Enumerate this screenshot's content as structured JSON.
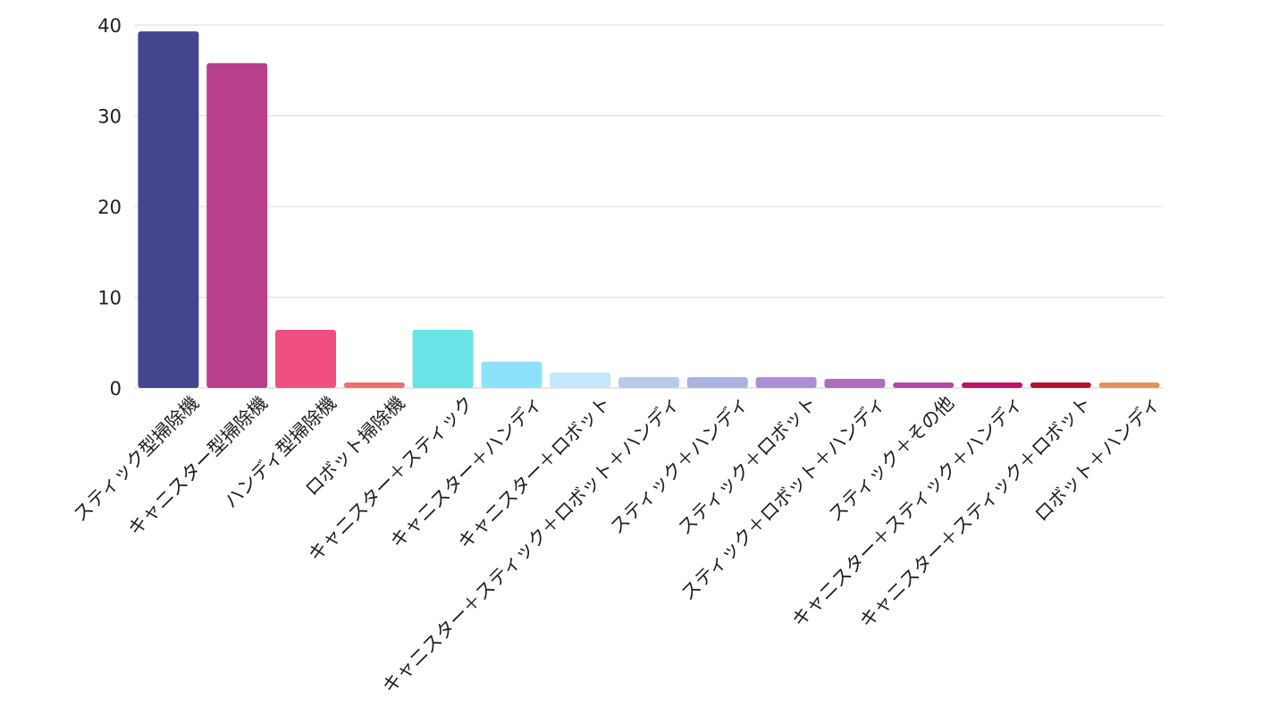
{
  "chart_data": {
    "type": "bar",
    "categories": [
      "スティック型掃除機",
      "キャニスター型掃除機",
      "ハンディ型掃除機",
      "ロボット掃除機",
      "キャニスター＋スティック",
      "キャニスター＋ハンディ",
      "キャニスター＋ロボット",
      "キャニスター＋スティック＋ロボット＋ハンディ",
      "スティック＋ハンディ",
      "スティック＋ロボット",
      "スティック＋ロボット＋ハンディ",
      "スティック＋その他",
      "キャニスター＋スティック＋ハンディ",
      "キャニスター＋スティック＋ロボット",
      "ロボット＋ハンディ"
    ],
    "values": [
      39.3,
      35.8,
      6.4,
      0.6,
      6.4,
      2.9,
      1.7,
      1.2,
      1.2,
      1.2,
      1.0,
      0.6,
      0.6,
      0.6,
      0.6
    ],
    "colors": [
      "#45458d",
      "#b93f8c",
      "#ef4f7f",
      "#ec6e6e",
      "#6ae4e6",
      "#8ee1fb",
      "#c4e7fb",
      "#b6cbeb",
      "#aab1e3",
      "#aa90d4",
      "#b06cc0",
      "#b847a4",
      "#c2126a",
      "#b8102e",
      "#e89157"
    ],
    "title": "",
    "xlabel": "",
    "ylabel": "",
    "ylim": [
      0,
      40
    ],
    "yticks": [
      0,
      10,
      20,
      30,
      40
    ],
    "grid": true,
    "legend": "none"
  }
}
